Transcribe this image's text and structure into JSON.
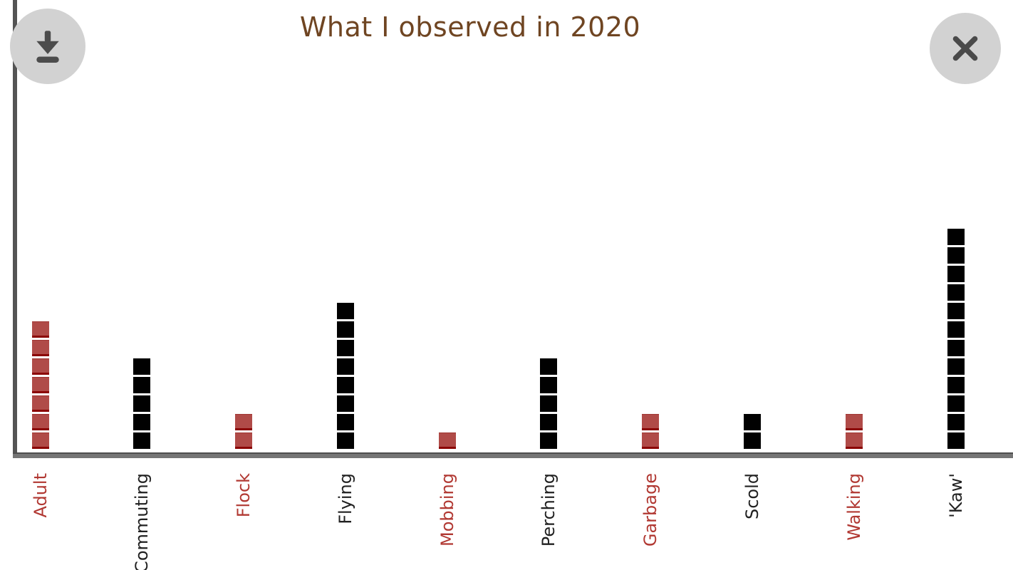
{
  "header": {
    "title": "What I observed in 2020",
    "title_color": "#6f4522"
  },
  "toolbar": {
    "download_icon": "download-icon",
    "close_icon": "close-icon",
    "button_background": "#d2d2d2",
    "icon_color": "#4c4c4c"
  },
  "axes": {
    "vertical_axis_color": "#545454",
    "horizontal_axis_color": "#757575"
  },
  "chart_data": {
    "type": "bar",
    "variant": "unit_square_pictograph",
    "title": "What I observed in 2020",
    "categories": [
      "Adult",
      "Commuting",
      "Flock",
      "Flying",
      "Mobbing",
      "Perching",
      "Garbage",
      "Scold",
      "Walking",
      "'Kaw'"
    ],
    "values": [
      7,
      5,
      2,
      8,
      1,
      5,
      2,
      2,
      2,
      12
    ],
    "unit_per_square": 1,
    "bar_palette": [
      "red",
      "black",
      "red",
      "black",
      "red",
      "black",
      "red",
      "black",
      "red",
      "black"
    ],
    "colors": {
      "red_fill": "#b04b48",
      "red_edge": "#8b0504",
      "black_fill": "#010101",
      "red_label": "#b13832",
      "black_label": "#212121"
    },
    "xlabel": "",
    "ylabel": "",
    "ylim": [
      0,
      12
    ],
    "grid": false,
    "legend": null,
    "tick_label_rotation": -90
  }
}
